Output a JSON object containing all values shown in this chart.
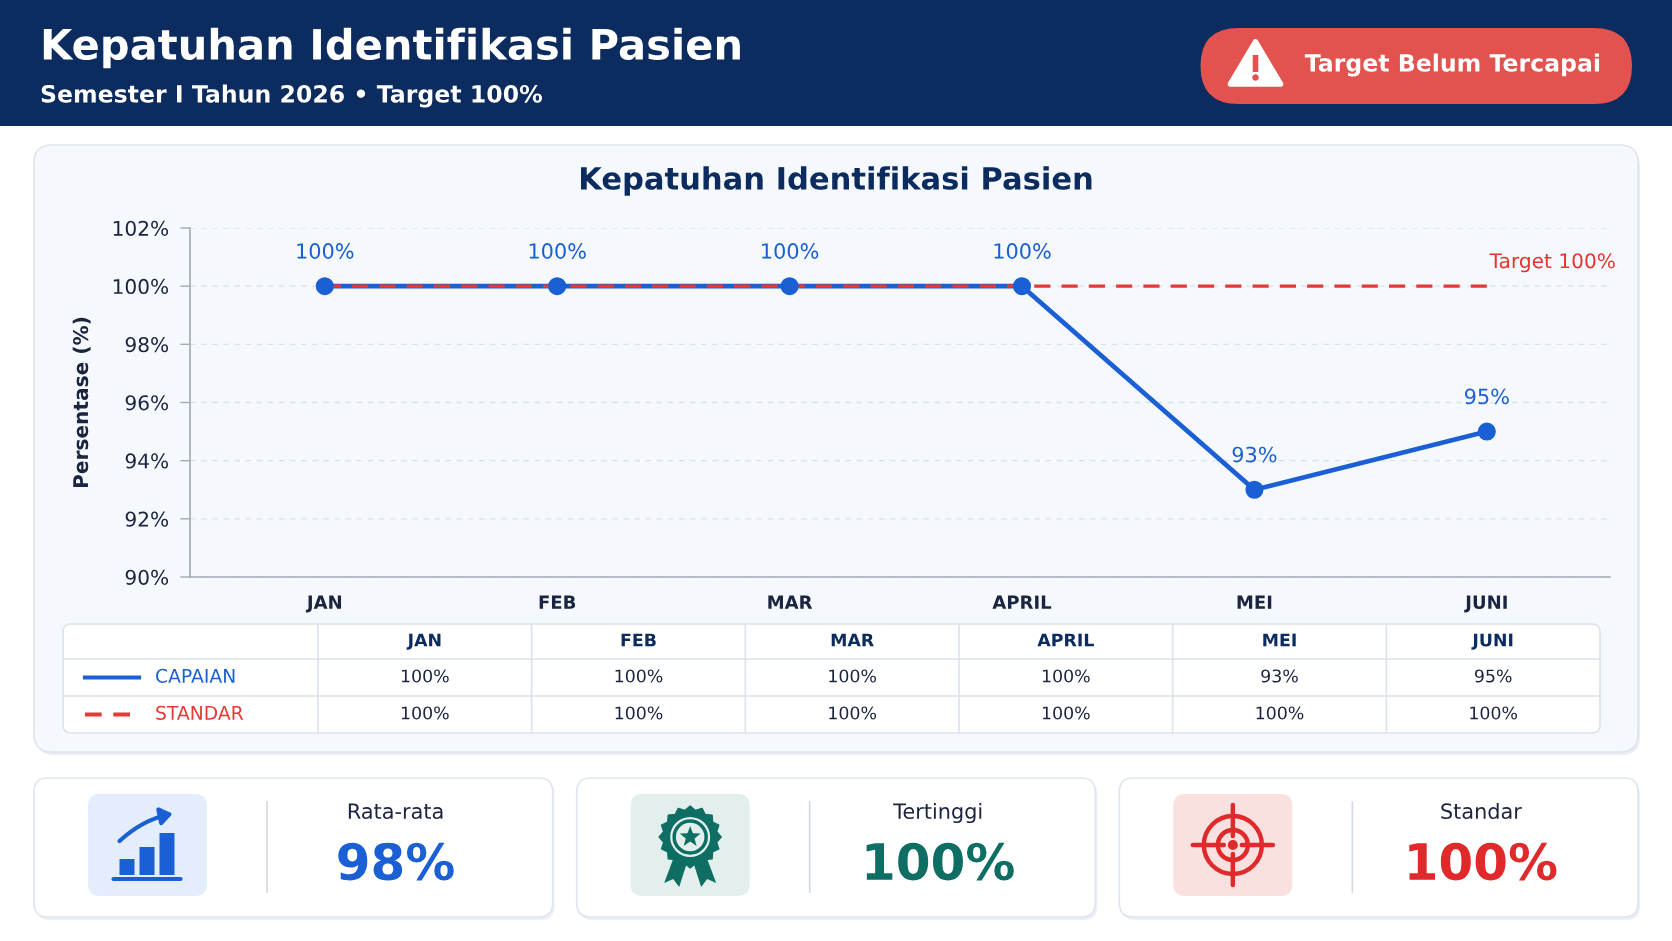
{
  "chart_data": [
    {
      "type": "other",
      "title": "Kepatuhan Identifikasi Pasien",
      "subtitle": "Semester I Tahun 2026 • Target 100%",
      "annotations": [
        "Target Belum Tercapai"
      ]
    },
    {
      "type": "line",
      "title": "Kepatuhan Identifikasi Pasien",
      "ylabel": "Persentase (%)",
      "categories": [
        "JAN",
        "FEB",
        "MAR",
        "APRIL",
        "MEI",
        "JUNI"
      ],
      "series": [
        {
          "name": "CAPAIAN",
          "color": "#1b5fd4",
          "values": [
            100,
            100,
            100,
            100,
            93,
            95
          ],
          "value_labels": [
            "100%",
            "100%",
            "100%",
            "100%",
            "93%",
            "95%"
          ],
          "data_labels": true,
          "marker": "circle",
          "line_style": "solid"
        },
        {
          "name": "STANDAR",
          "color": "#e53935",
          "values": [
            100,
            100,
            100,
            100,
            100,
            100
          ],
          "value_labels": [
            "100%",
            "100%",
            "100%",
            "100%",
            "100%",
            "100%"
          ],
          "line_style": "dashed"
        }
      ],
      "ylim": [
        90,
        102
      ],
      "yticks": [
        {
          "value": 90,
          "label": "90%"
        },
        {
          "value": 92,
          "label": "92%"
        },
        {
          "value": 94,
          "label": "94%"
        },
        {
          "value": 96,
          "label": "96%"
        },
        {
          "value": 98,
          "label": "98%"
        },
        {
          "value": 100,
          "label": "100%"
        },
        {
          "value": 102,
          "label": "102%"
        }
      ],
      "grid": "y",
      "legend": "bottom",
      "annotations": [
        {
          "text": "Target 100%",
          "x": "JUNI",
          "y": 100
        }
      ]
    },
    {
      "type": "other",
      "annotations": [
        "Rata-rata",
        "98%",
        "Tertinggi",
        "100%",
        "Standar",
        "100%"
      ]
    }
  ]
}
